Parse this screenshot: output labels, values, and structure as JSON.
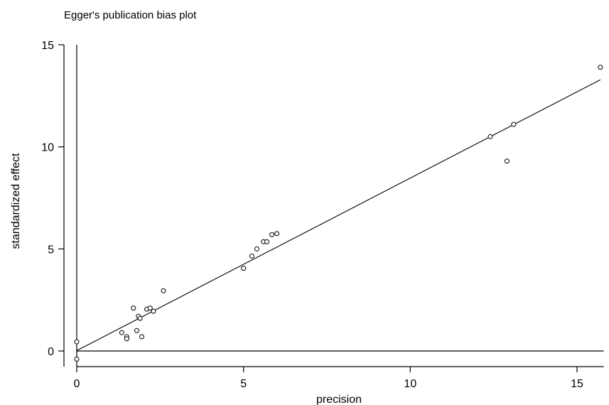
{
  "chart_data": {
    "type": "scatter",
    "title": "Egger's publication bias plot",
    "xlabel": "precision",
    "ylabel": "standardized effect",
    "xlim": [
      0,
      15.8
    ],
    "ylim": [
      -0.5,
      15
    ],
    "xticks": [
      0,
      5,
      10,
      15
    ],
    "yticks": [
      0,
      5,
      10,
      15
    ],
    "grid": false,
    "series": [
      {
        "points": [
          [
            0.0,
            0.45
          ],
          [
            0.0,
            -0.4
          ],
          [
            1.35,
            0.9
          ],
          [
            1.5,
            0.7
          ],
          [
            1.5,
            0.6
          ],
          [
            1.7,
            2.1
          ],
          [
            1.8,
            1.0
          ],
          [
            1.85,
            1.7
          ],
          [
            1.9,
            1.6
          ],
          [
            1.95,
            0.7
          ],
          [
            2.1,
            2.05
          ],
          [
            2.2,
            2.1
          ],
          [
            2.3,
            1.95
          ],
          [
            2.6,
            2.95
          ],
          [
            5.0,
            4.05
          ],
          [
            5.25,
            4.65
          ],
          [
            5.4,
            5.0
          ],
          [
            5.6,
            5.35
          ],
          [
            5.7,
            5.35
          ],
          [
            5.85,
            5.7
          ],
          [
            6.0,
            5.75
          ],
          [
            12.4,
            10.5
          ],
          [
            12.9,
            9.3
          ],
          [
            13.1,
            11.1
          ],
          [
            15.7,
            13.9
          ]
        ]
      }
    ],
    "regression_line": {
      "intercept": 0.02,
      "slope": 0.845,
      "x_range": [
        0,
        15.7
      ]
    }
  }
}
